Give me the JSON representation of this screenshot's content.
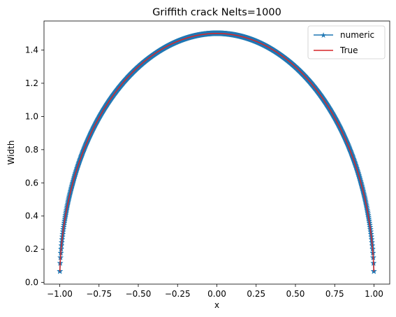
{
  "chart_data": {
    "type": "line",
    "title": "Griffith crack Nelts=1000",
    "xlabel": "x",
    "ylabel": "Width",
    "xlim": [
      -1.1,
      1.1
    ],
    "ylim": [
      -0.01,
      1.575
    ],
    "xticks": [
      -1.0,
      -0.75,
      -0.5,
      -0.25,
      0.0,
      0.25,
      0.5,
      0.75,
      1.0
    ],
    "xtick_labels": [
      "−1.00",
      "−0.75",
      "−0.50",
      "−0.25",
      "0.00",
      "0.25",
      "0.50",
      "0.75",
      "1.00"
    ],
    "yticks": [
      0.0,
      0.2,
      0.4,
      0.6,
      0.8,
      1.0,
      1.2,
      1.4
    ],
    "ytick_labels": [
      "0.0",
      "0.2",
      "0.4",
      "0.6",
      "0.8",
      "1.0",
      "1.2",
      "1.4"
    ],
    "grid": false,
    "legend_position": "top-right",
    "series": [
      {
        "name": "numeric",
        "color": "#1f77b4",
        "marker": "star",
        "formula": "1.5*sqrt(1-x^2)",
        "x_range": [
          -0.999,
          0.999
        ],
        "n_points": 1000
      },
      {
        "name": "True",
        "color": "#d62728",
        "marker": "none",
        "formula": "1.5*sqrt(1-x^2)",
        "x_range": [
          -0.999,
          0.999
        ],
        "n_points": 400
      }
    ]
  }
}
